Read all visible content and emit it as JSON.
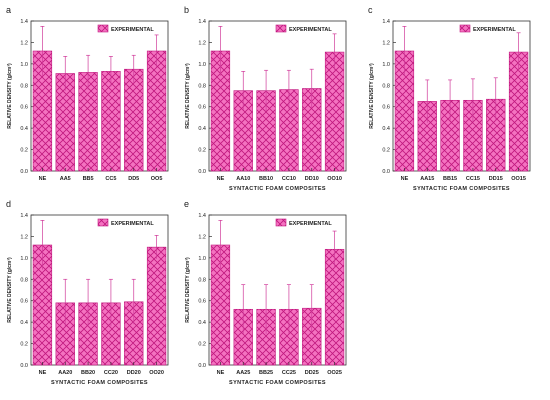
{
  "colors": {
    "bar_fill": "#f472c0",
    "bar_hatch": "#c0187e",
    "error_bar": "#d03a9a",
    "axis": "#333333",
    "text": "#222222"
  },
  "chart_data": [
    {
      "panel": "a",
      "type": "bar",
      "categories": [
        "NE",
        "AA5",
        "BB5",
        "CC5",
        "DD5",
        "OO5"
      ],
      "values": [
        1.12,
        0.91,
        0.92,
        0.93,
        0.95,
        1.12
      ],
      "errors": [
        0.23,
        0.16,
        0.16,
        0.14,
        0.13,
        0.15
      ],
      "ylim": [
        0,
        1.4
      ],
      "yticks": [
        0.0,
        0.2,
        0.4,
        0.6,
        0.8,
        1.0,
        1.2,
        1.4
      ],
      "ylabel": "RELATIVE DENSITY (g/cm³)",
      "xlabel": "",
      "legend": "EXPERIMENTAL",
      "legend_position": "top-right",
      "grid": false
    },
    {
      "panel": "b",
      "type": "bar",
      "categories": [
        "NE",
        "AA10",
        "BB10",
        "CC10",
        "DD10",
        "OO10"
      ],
      "values": [
        1.12,
        0.75,
        0.75,
        0.76,
        0.77,
        1.11
      ],
      "errors": [
        0.23,
        0.18,
        0.19,
        0.18,
        0.18,
        0.17
      ],
      "ylim": [
        0,
        1.4
      ],
      "yticks": [
        0.0,
        0.2,
        0.4,
        0.6,
        0.8,
        1.0,
        1.2,
        1.4
      ],
      "ylabel": "RELATIVE DENSITY (g/cm³)",
      "xlabel": "SYNTACTIC FOAM COMPOSITES",
      "legend": "EXPERIMENTAL",
      "legend_position": "top-right",
      "grid": false
    },
    {
      "panel": "c",
      "type": "bar",
      "categories": [
        "NE",
        "AA15",
        "BB15",
        "CC15",
        "DD15",
        "OO15"
      ],
      "values": [
        1.12,
        0.65,
        0.66,
        0.66,
        0.67,
        1.11
      ],
      "errors": [
        0.23,
        0.2,
        0.19,
        0.2,
        0.2,
        0.18
      ],
      "ylim": [
        0,
        1.4
      ],
      "yticks": [
        0.0,
        0.2,
        0.4,
        0.6,
        0.8,
        1.0,
        1.2,
        1.4
      ],
      "ylabel": "RELATIVE DENSITY (g/cm³)",
      "xlabel": "SYNTACTIC FOAM COMPOSITES",
      "legend": "EXPERIMENTAL",
      "legend_position": "top-right",
      "grid": false
    },
    {
      "panel": "d",
      "type": "bar",
      "categories": [
        "NE",
        "AA20",
        "BB20",
        "CC20",
        "DD20",
        "OO20"
      ],
      "values": [
        1.12,
        0.58,
        0.58,
        0.58,
        0.59,
        1.1
      ],
      "errors": [
        0.23,
        0.22,
        0.22,
        0.22,
        0.21,
        0.11
      ],
      "ylim": [
        0,
        1.4
      ],
      "yticks": [
        0.0,
        0.2,
        0.4,
        0.6,
        0.8,
        1.0,
        1.2,
        1.4
      ],
      "ylabel": "RELATIVE DENSITY (g/cm³)",
      "xlabel": "SYNTACTIC FOAM COMPOSITES",
      "legend": "EXPERIMENTAL",
      "legend_position": "top-right",
      "grid": false
    },
    {
      "panel": "e",
      "type": "bar",
      "categories": [
        "NE",
        "AA25",
        "BB25",
        "CC25",
        "DD25",
        "OO25"
      ],
      "values": [
        1.12,
        0.52,
        0.52,
        0.52,
        0.53,
        1.08
      ],
      "errors": [
        0.23,
        0.23,
        0.23,
        0.23,
        0.22,
        0.17
      ],
      "ylim": [
        0,
        1.4
      ],
      "yticks": [
        0.0,
        0.2,
        0.4,
        0.6,
        0.8,
        1.0,
        1.2,
        1.4
      ],
      "ylabel": "RELATIVE DENSITY (g/cm³)",
      "xlabel": "SYNTACTIC FOAM COMPOSITES",
      "legend": "EXPERIMENTAL",
      "legend_position": "top-right",
      "grid": false
    }
  ]
}
